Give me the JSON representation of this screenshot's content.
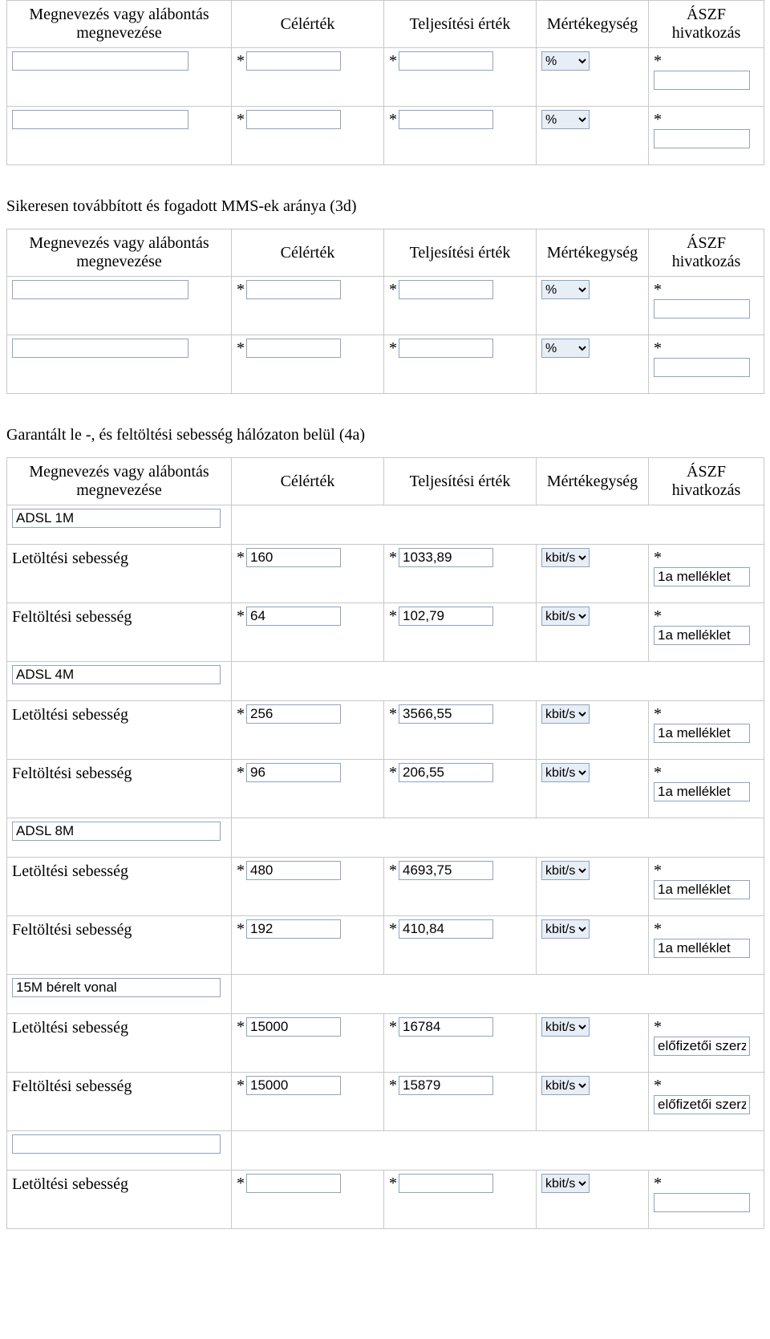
{
  "headers": {
    "col1_line1": "Megnevezés vagy alábontás",
    "col1_line2": "megnevezése",
    "col2": "Célérték",
    "col3": "Teljesítési érték",
    "col4": "Mértékegység",
    "col5_line1": "ÁSZF",
    "col5_line2": "hivatkozás"
  },
  "unitOptions": {
    "percent": "%",
    "kbits": "kbit/s"
  },
  "labels": {
    "letoltes": "Letöltési sebesség",
    "feltoltes": "Feltöltési sebesség"
  },
  "asterisk": "*",
  "table1": {
    "rows": [
      {
        "name": "",
        "target": "",
        "actual": "",
        "unit": "%",
        "ref": ""
      },
      {
        "name": "",
        "target": "",
        "actual": "",
        "unit": "%",
        "ref": ""
      }
    ]
  },
  "section2_title": "Sikeresen továbbított és fogadott MMS-ek aránya (3d)",
  "table2": {
    "rows": [
      {
        "name": "",
        "target": "",
        "actual": "",
        "unit": "%",
        "ref": ""
      },
      {
        "name": "",
        "target": "",
        "actual": "",
        "unit": "%",
        "ref": ""
      }
    ]
  },
  "section3_title": "Garantált le -, és feltöltési sebesség hálózaton belül (4a)",
  "table3": {
    "groups": [
      {
        "groupName": "ADSL 1M",
        "rows": [
          {
            "label": "letoltes",
            "target": "160",
            "actual": "1033,89",
            "unit": "kbit/s",
            "ref": "1a melléklet"
          },
          {
            "label": "feltoltes",
            "target": "64",
            "actual": "102,79",
            "unit": "kbit/s",
            "ref": "1a melléklet"
          }
        ]
      },
      {
        "groupName": "ADSL 4M",
        "rows": [
          {
            "label": "letoltes",
            "target": "256",
            "actual": "3566,55",
            "unit": "kbit/s",
            "ref": "1a melléklet"
          },
          {
            "label": "feltoltes",
            "target": "96",
            "actual": "206,55",
            "unit": "kbit/s",
            "ref": "1a melléklet"
          }
        ]
      },
      {
        "groupName": "ADSL 8M",
        "rows": [
          {
            "label": "letoltes",
            "target": "480",
            "actual": "4693,75",
            "unit": "kbit/s",
            "ref": "1a melléklet"
          },
          {
            "label": "feltoltes",
            "target": "192",
            "actual": "410,84",
            "unit": "kbit/s",
            "ref": "1a melléklet"
          }
        ]
      },
      {
        "groupName": "15M bérelt vonal",
        "rows": [
          {
            "label": "letoltes",
            "target": "15000",
            "actual": "16784",
            "unit": "kbit/s",
            "ref": "előfizetői szerz"
          },
          {
            "label": "feltoltes",
            "target": "15000",
            "actual": "15879",
            "unit": "kbit/s",
            "ref": "előfizetői szerz"
          }
        ]
      },
      {
        "groupName": "",
        "rows": [
          {
            "label": "letoltes",
            "target": "",
            "actual": "",
            "unit": "kbit/s",
            "ref": ""
          }
        ]
      }
    ]
  }
}
